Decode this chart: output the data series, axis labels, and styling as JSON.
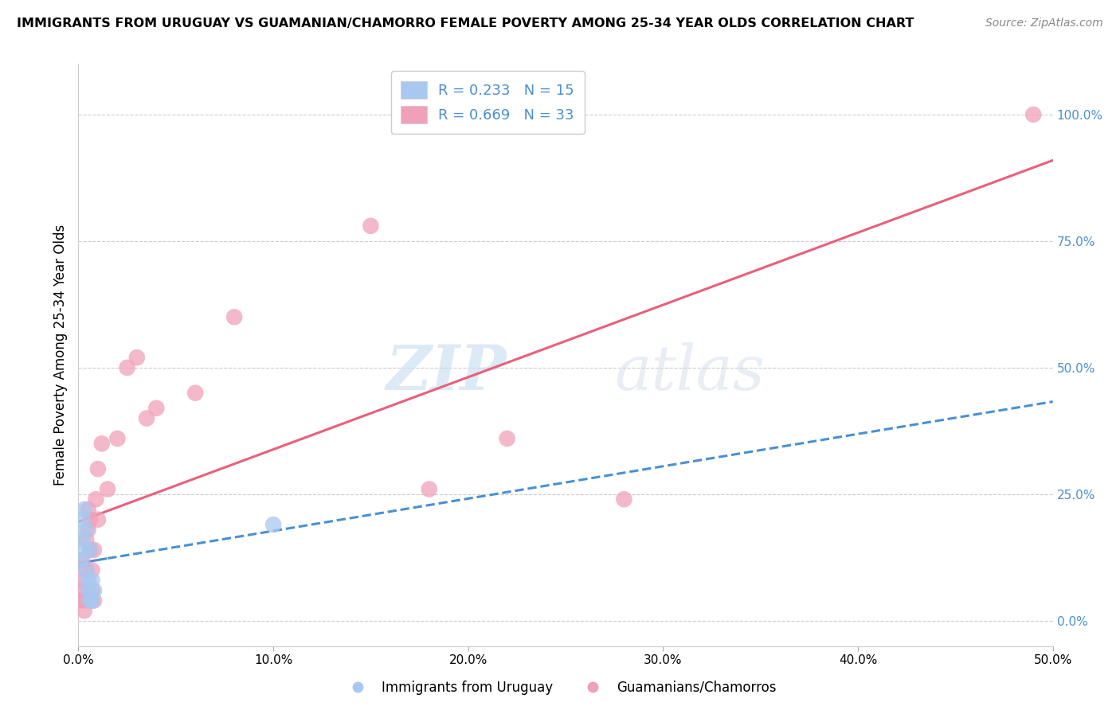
{
  "title": "IMMIGRANTS FROM URUGUAY VS GUAMANIAN/CHAMORRO FEMALE POVERTY AMONG 25-34 YEAR OLDS CORRELATION CHART",
  "source": "Source: ZipAtlas.com",
  "ylabel": "Female Poverty Among 25-34 Year Olds",
  "xlim": [
    0.0,
    0.5
  ],
  "ylim": [
    -0.05,
    1.1
  ],
  "xtick_labels": [
    "0.0%",
    "10.0%",
    "20.0%",
    "30.0%",
    "40.0%",
    "50.0%"
  ],
  "xtick_positions": [
    0.0,
    0.1,
    0.2,
    0.3,
    0.4,
    0.5
  ],
  "ytick_labels_right": [
    "0.0%",
    "25.0%",
    "50.0%",
    "75.0%",
    "100.0%"
  ],
  "ytick_positions_right": [
    0.0,
    0.25,
    0.5,
    0.75,
    1.0
  ],
  "series_blue": {
    "name": "Immigrants from Uruguay",
    "scatter_color": "#a8c8f0",
    "line_color": "#4a90d0",
    "R": 0.233,
    "N": 15,
    "x": [
      0.001,
      0.002,
      0.002,
      0.003,
      0.003,
      0.004,
      0.004,
      0.005,
      0.005,
      0.006,
      0.006,
      0.007,
      0.007,
      0.008,
      0.1
    ],
    "y": [
      0.12,
      0.2,
      0.16,
      0.22,
      0.14,
      0.18,
      0.1,
      0.08,
      0.06,
      0.04,
      0.14,
      0.04,
      0.08,
      0.06,
      0.19
    ]
  },
  "series_pink": {
    "name": "Guamanians/Chamorros",
    "scatter_color": "#f0a0b8",
    "line_color": "#e8607a",
    "R": 0.669,
    "N": 33,
    "x": [
      0.001,
      0.001,
      0.002,
      0.002,
      0.003,
      0.003,
      0.004,
      0.004,
      0.005,
      0.005,
      0.006,
      0.006,
      0.007,
      0.007,
      0.008,
      0.008,
      0.009,
      0.01,
      0.01,
      0.012,
      0.015,
      0.02,
      0.025,
      0.03,
      0.035,
      0.04,
      0.06,
      0.08,
      0.15,
      0.18,
      0.22,
      0.28,
      0.49
    ],
    "y": [
      0.06,
      0.04,
      0.12,
      0.08,
      0.04,
      0.02,
      0.16,
      0.1,
      0.22,
      0.18,
      0.14,
      0.2,
      0.1,
      0.06,
      0.14,
      0.04,
      0.24,
      0.2,
      0.3,
      0.35,
      0.26,
      0.36,
      0.5,
      0.52,
      0.4,
      0.42,
      0.45,
      0.6,
      0.78,
      0.26,
      0.36,
      0.24,
      1.0
    ]
  },
  "watermark_zip": "ZIP",
  "watermark_atlas": "atlas",
  "background_color": "#ffffff",
  "grid_color": "#cccccc"
}
